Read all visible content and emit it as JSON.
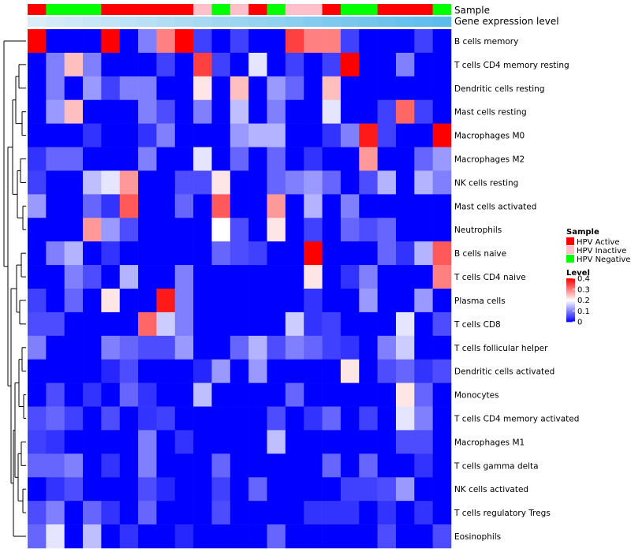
{
  "chart_data": {
    "type": "heatmap",
    "title": "",
    "annotation_labels": [
      "Sample",
      "Gene expression level"
    ],
    "sample_groups": [
      "HPV Active",
      "HPV Negative",
      "HPV Negative",
      "HPV Negative",
      "HPV Active",
      "HPV Active",
      "HPV Active",
      "HPV Active",
      "HPV Active",
      "HPV Inactive",
      "HPV Negative",
      "HPV Inactive",
      "HPV Active",
      "HPV Negative",
      "HPV Inactive",
      "HPV Inactive",
      "HPV Active",
      "HPV Negative",
      "HPV Negative",
      "HPV Active",
      "HPV Active",
      "HPV Active",
      "HPV Negative"
    ],
    "gene_expression_level": [
      0.02,
      0.05,
      0.08,
      0.11,
      0.14,
      0.17,
      0.2,
      0.23,
      0.26,
      0.29,
      0.32,
      0.35,
      0.38,
      0.41,
      0.44,
      0.47,
      0.5,
      0.53,
      0.56,
      0.59,
      0.62,
      0.65,
      0.68
    ],
    "rows": [
      "B cells memory",
      "T cells CD4 memory resting",
      "Dendritic cells resting",
      "Mast cells resting",
      "Macrophages M0",
      "Macrophages M2",
      "NK cells resting",
      "Mast cells activated",
      "Neutrophils",
      "B cells naive",
      "T cells CD4 naive",
      "Plasma cells",
      "T cells CD8",
      "T cells follicular helper",
      "Dendritic cells activated",
      "Monocytes",
      "T cells CD4 memory activated",
      "Macrophages M1",
      "T cells gamma delta",
      "NK cells activated",
      "T cells regulatory  Tregs",
      "Eosinophils"
    ],
    "values": [
      [
        0.4,
        0.0,
        0.0,
        0.0,
        0.4,
        0.0,
        0.1,
        0.3,
        0.4,
        0.05,
        0.0,
        0.05,
        0.0,
        0.0,
        0.35,
        0.3,
        0.3,
        0.05,
        0.0,
        0.0,
        0.0,
        0.05,
        0.0
      ],
      [
        0.0,
        0.1,
        0.25,
        0.1,
        0.0,
        0.0,
        0.0,
        0.05,
        0.0,
        0.35,
        0.05,
        0.0,
        0.18,
        0.0,
        0.05,
        0.0,
        0.05,
        0.4,
        0.0,
        0.0,
        0.1,
        0.0,
        0.0
      ],
      [
        0.0,
        0.1,
        0.0,
        0.12,
        0.05,
        0.1,
        0.1,
        0.0,
        0.0,
        0.22,
        0.0,
        0.25,
        0.0,
        0.12,
        0.08,
        0.0,
        0.25,
        0.0,
        0.0,
        0.0,
        0.0,
        0.0,
        0.0
      ],
      [
        0.0,
        0.12,
        0.25,
        0.0,
        0.0,
        0.0,
        0.1,
        0.06,
        0.0,
        0.1,
        0.0,
        0.15,
        0.0,
        0.1,
        0.0,
        0.0,
        0.18,
        0.0,
        0.0,
        0.05,
        0.32,
        0.05,
        0.0
      ],
      [
        0.0,
        0.0,
        0.0,
        0.04,
        0.0,
        0.0,
        0.04,
        0.1,
        0.0,
        0.0,
        0.0,
        0.12,
        0.14,
        0.14,
        0.0,
        0.0,
        0.04,
        0.1,
        0.38,
        0.05,
        0.0,
        0.0,
        0.4
      ],
      [
        0.04,
        0.08,
        0.08,
        0.0,
        0.0,
        0.0,
        0.1,
        0.0,
        0.0,
        0.18,
        0.0,
        0.08,
        0.0,
        0.08,
        0.0,
        0.04,
        0.0,
        0.0,
        0.28,
        0.0,
        0.0,
        0.08,
        0.12
      ],
      [
        0.05,
        0.0,
        0.0,
        0.15,
        0.18,
        0.28,
        0.0,
        0.0,
        0.06,
        0.06,
        0.22,
        0.0,
        0.0,
        0.08,
        0.1,
        0.12,
        0.08,
        0.0,
        0.06,
        0.14,
        0.0,
        0.14,
        0.1
      ],
      [
        0.12,
        0.0,
        0.0,
        0.08,
        0.04,
        0.33,
        0.0,
        0.0,
        0.08,
        0.0,
        0.33,
        0.0,
        0.0,
        0.28,
        0.0,
        0.14,
        0.0,
        0.1,
        0.0,
        0.0,
        0.0,
        0.0,
        0.0
      ],
      [
        0.0,
        0.0,
        0.0,
        0.28,
        0.12,
        0.06,
        0.0,
        0.0,
        0.0,
        0.0,
        0.2,
        0.06,
        0.0,
        0.22,
        0.0,
        0.05,
        0.0,
        0.08,
        0.06,
        0.08,
        0.0,
        0.0,
        0.0
      ],
      [
        0.0,
        0.1,
        0.14,
        0.0,
        0.04,
        0.0,
        0.0,
        0.0,
        0.0,
        0.0,
        0.08,
        0.06,
        0.05,
        0.0,
        0.0,
        0.4,
        0.0,
        0.0,
        0.0,
        0.08,
        0.04,
        0.14,
        0.33
      ],
      [
        0.0,
        0.0,
        0.1,
        0.06,
        0.0,
        0.14,
        0.0,
        0.0,
        0.1,
        0.0,
        0.0,
        0.0,
        0.0,
        0.0,
        0.0,
        0.22,
        0.0,
        0.04,
        0.1,
        0.0,
        0.0,
        0.0,
        0.3
      ],
      [
        0.05,
        0.0,
        0.08,
        0.0,
        0.22,
        0.0,
        0.0,
        0.38,
        0.1,
        0.0,
        0.0,
        0.0,
        0.0,
        0.0,
        0.0,
        0.04,
        0.0,
        0.0,
        0.12,
        0.0,
        0.0,
        0.12,
        0.0
      ],
      [
        0.06,
        0.06,
        0.0,
        0.0,
        0.0,
        0.0,
        0.32,
        0.16,
        0.1,
        0.0,
        0.0,
        0.0,
        0.0,
        0.0,
        0.16,
        0.04,
        0.05,
        0.0,
        0.0,
        0.0,
        0.18,
        0.0,
        0.06
      ],
      [
        0.1,
        0.0,
        0.0,
        0.0,
        0.1,
        0.08,
        0.06,
        0.06,
        0.12,
        0.0,
        0.0,
        0.08,
        0.14,
        0.06,
        0.1,
        0.08,
        0.05,
        0.04,
        0.0,
        0.1,
        0.16,
        0.0,
        0.0
      ],
      [
        0.0,
        0.0,
        0.0,
        0.0,
        0.03,
        0.06,
        0.0,
        0.0,
        0.0,
        0.03,
        0.12,
        0.0,
        0.12,
        0.0,
        0.0,
        0.0,
        0.0,
        0.22,
        0.0,
        0.06,
        0.08,
        0.04,
        0.06
      ],
      [
        0.0,
        0.06,
        0.0,
        0.04,
        0.0,
        0.08,
        0.04,
        0.0,
        0.0,
        0.15,
        0.0,
        0.0,
        0.0,
        0.0,
        0.08,
        0.0,
        0.0,
        0.0,
        0.0,
        0.0,
        0.22,
        0.08,
        0.0
      ],
      [
        0.06,
        0.08,
        0.05,
        0.0,
        0.06,
        0.0,
        0.04,
        0.05,
        0.0,
        0.0,
        0.0,
        0.0,
        0.0,
        0.06,
        0.0,
        0.04,
        0.08,
        0.0,
        0.05,
        0.0,
        0.18,
        0.1,
        0.0
      ],
      [
        0.05,
        0.04,
        0.0,
        0.0,
        0.0,
        0.0,
        0.1,
        0.0,
        0.04,
        0.0,
        0.0,
        0.0,
        0.0,
        0.15,
        0.0,
        0.0,
        0.0,
        0.0,
        0.0,
        0.0,
        0.06,
        0.06,
        0.0
      ],
      [
        0.08,
        0.08,
        0.1,
        0.0,
        0.04,
        0.0,
        0.1,
        0.0,
        0.0,
        0.0,
        0.08,
        0.0,
        0.0,
        0.0,
        0.0,
        0.0,
        0.08,
        0.0,
        0.08,
        0.0,
        0.0,
        0.04,
        0.0
      ],
      [
        0.0,
        0.04,
        0.06,
        0.0,
        0.0,
        0.0,
        0.06,
        0.03,
        0.0,
        0.0,
        0.05,
        0.0,
        0.08,
        0.0,
        0.0,
        0.0,
        0.0,
        0.05,
        0.05,
        0.06,
        0.12,
        0.0,
        0.0
      ],
      [
        0.06,
        0.1,
        0.0,
        0.08,
        0.04,
        0.0,
        0.08,
        0.0,
        0.0,
        0.0,
        0.06,
        0.0,
        0.0,
        0.0,
        0.0,
        0.04,
        0.04,
        0.04,
        0.0,
        0.04,
        0.0,
        0.04,
        0.0
      ],
      [
        0.08,
        0.18,
        0.0,
        0.15,
        0.0,
        0.04,
        0.0,
        0.0,
        0.03,
        0.0,
        0.0,
        0.0,
        0.0,
        0.08,
        0.0,
        0.0,
        0.0,
        0.0,
        0.0,
        0.06,
        0.0,
        0.0,
        0.06
      ]
    ],
    "color_scale": {
      "min": 0,
      "max": 0.4,
      "low_color": "#0000FF",
      "mid_color": "#FFFFFF",
      "high_color": "#FF0000",
      "mid_value": 0.2
    },
    "legend": {
      "sample_title": "Sample",
      "sample_entries": [
        {
          "label": "HPV Active",
          "color": "#FF0000"
        },
        {
          "label": "HPV Inactive",
          "color": "#FFC0CB"
        },
        {
          "label": "HPV Negative",
          "color": "#00FF00"
        }
      ],
      "level_title": "Level",
      "level_ticks": [
        "0.4",
        "0.3",
        "0.2",
        "0.1",
        "0"
      ],
      "level_tick_values": [
        0.4,
        0.3,
        0.2,
        0.1,
        0
      ]
    },
    "legend_placement": "right",
    "dendrogram": "rows"
  }
}
